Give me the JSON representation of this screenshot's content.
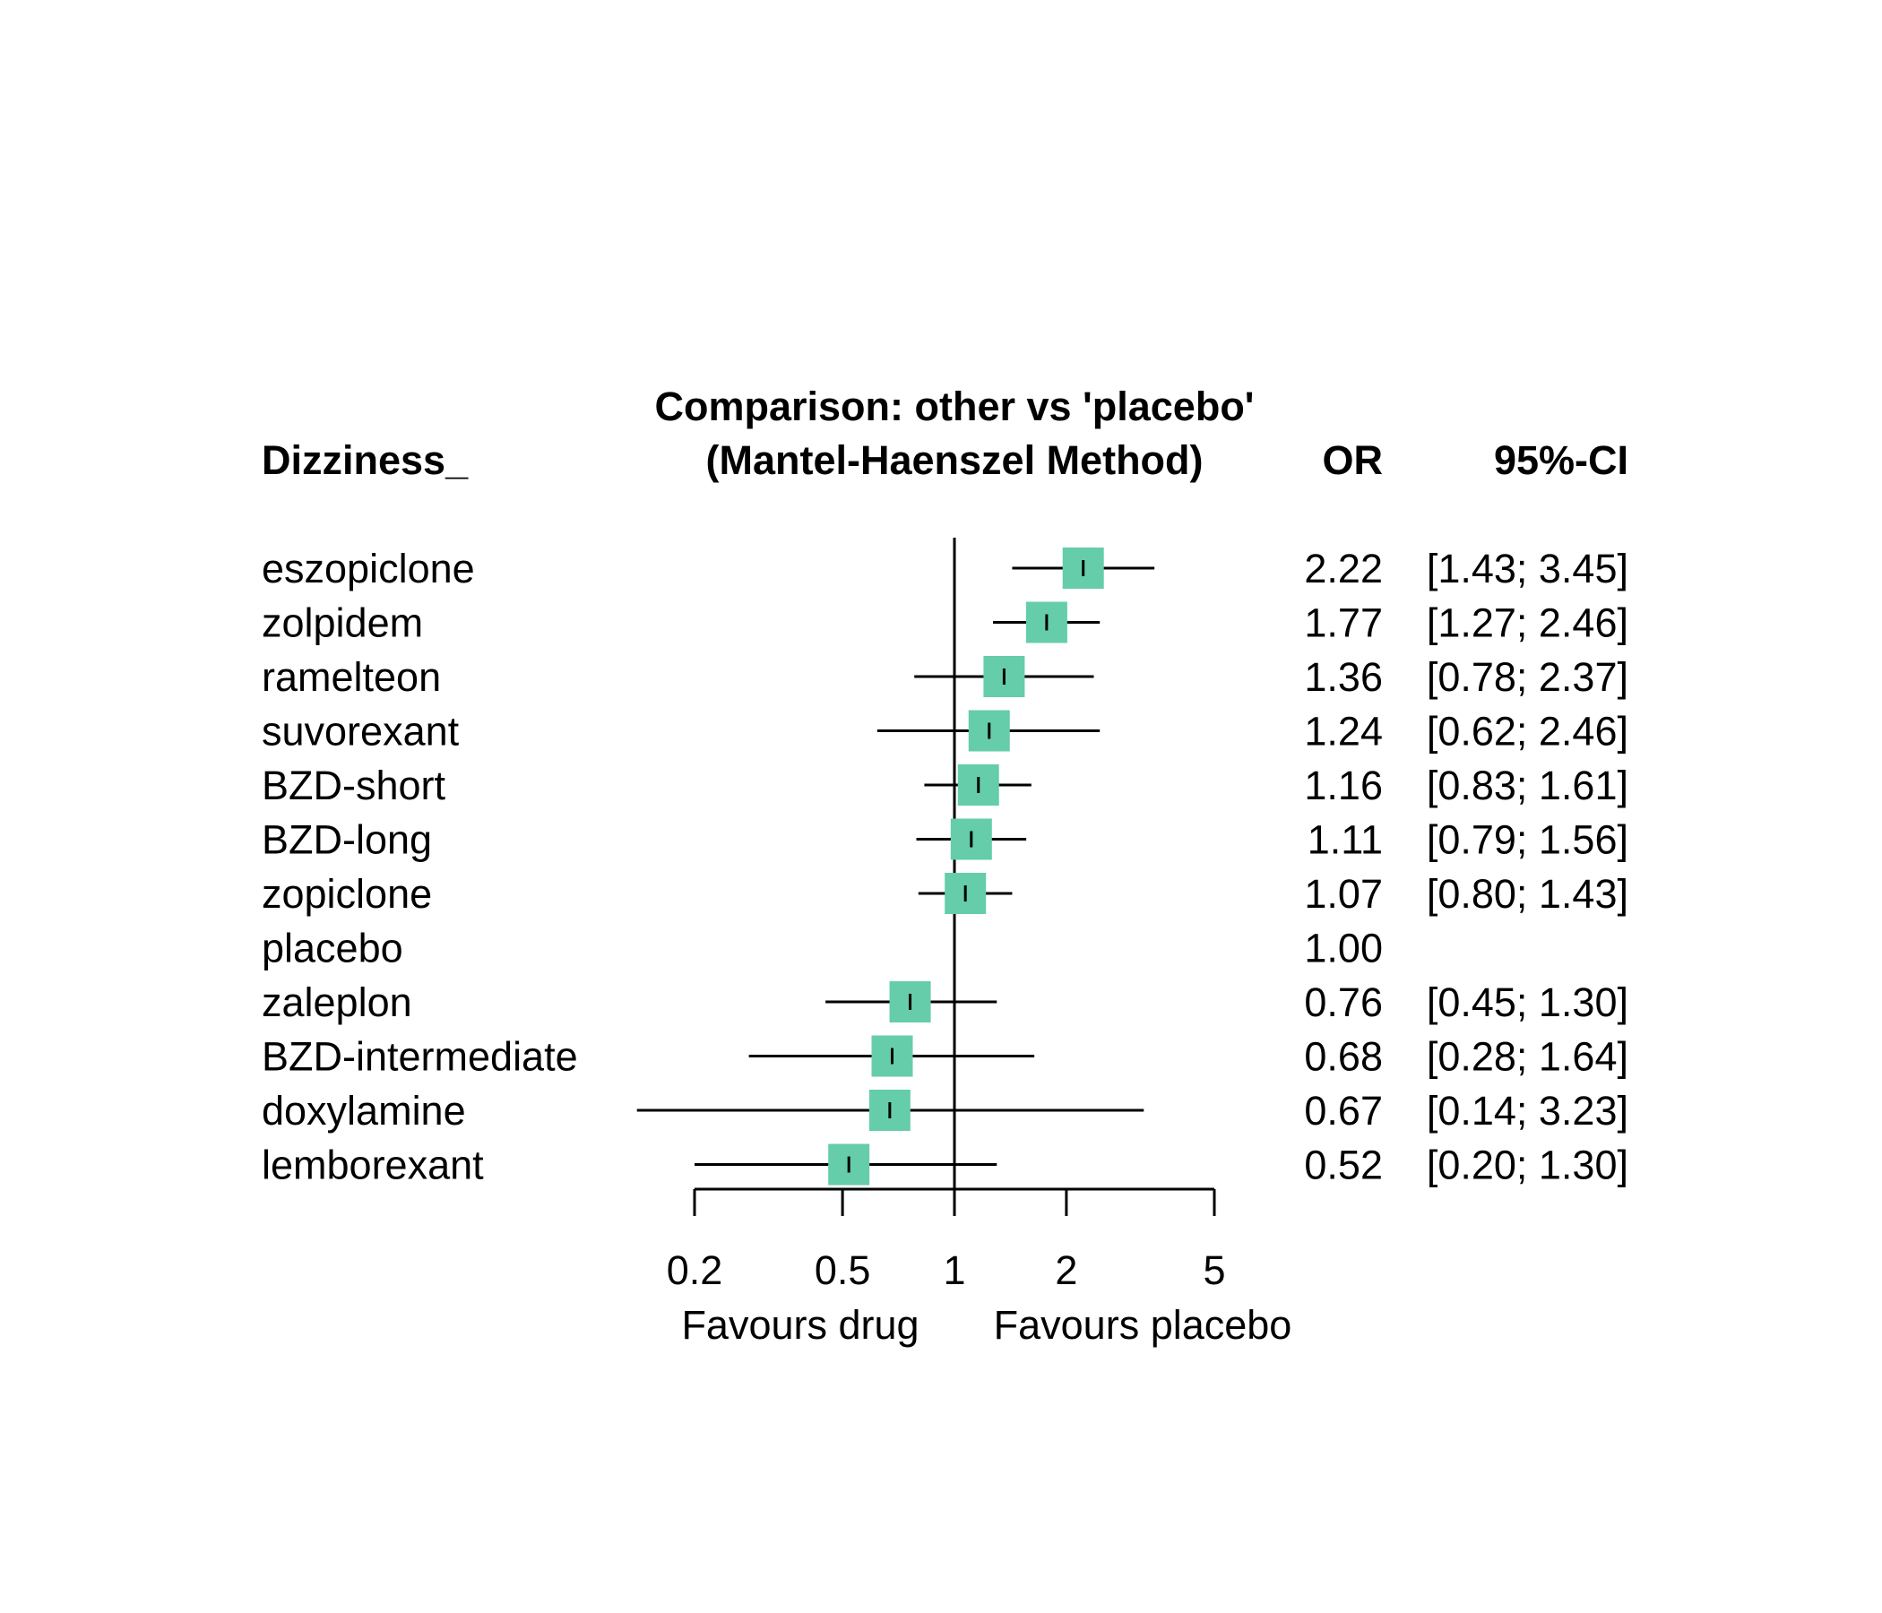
{
  "chart_data": {
    "type": "forest",
    "outcome_label": "Dizziness_",
    "title_line1": "Comparison: other vs 'placebo'",
    "title_line2": "(Mantel-Haenszel Method)",
    "col_or_label": "OR",
    "col_ci_label": "95%-CI",
    "xscale": "log",
    "xlim": [
      0.2,
      5
    ],
    "reference_value": 1,
    "ticks": [
      {
        "value": 0.2,
        "label": "0.2"
      },
      {
        "value": 0.5,
        "label": "0.5"
      },
      {
        "value": 1,
        "label": "1"
      },
      {
        "value": 2,
        "label": "2"
      },
      {
        "value": 5,
        "label": "5"
      }
    ],
    "favours_left": "Favours drug",
    "favours_right": "Favours placebo",
    "marker_color": "#66CDAA",
    "rows": [
      {
        "name": "eszopiclone",
        "or": 2.22,
        "lower": 1.43,
        "upper": 3.45,
        "or_text": "2.22",
        "ci_text": "[1.43; 3.45]"
      },
      {
        "name": "zolpidem",
        "or": 1.77,
        "lower": 1.27,
        "upper": 2.46,
        "or_text": "1.77",
        "ci_text": "[1.27; 2.46]"
      },
      {
        "name": "ramelteon",
        "or": 1.36,
        "lower": 0.78,
        "upper": 2.37,
        "or_text": "1.36",
        "ci_text": "[0.78; 2.37]"
      },
      {
        "name": "suvorexant",
        "or": 1.24,
        "lower": 0.62,
        "upper": 2.46,
        "or_text": "1.24",
        "ci_text": "[0.62; 2.46]"
      },
      {
        "name": "BZD-short",
        "or": 1.16,
        "lower": 0.83,
        "upper": 1.61,
        "or_text": "1.16",
        "ci_text": "[0.83; 1.61]"
      },
      {
        "name": "BZD-long",
        "or": 1.11,
        "lower": 0.79,
        "upper": 1.56,
        "or_text": "1.11",
        "ci_text": "[0.79; 1.56]"
      },
      {
        "name": "zopiclone",
        "or": 1.07,
        "lower": 0.8,
        "upper": 1.43,
        "or_text": "1.07",
        "ci_text": "[0.80; 1.43]"
      },
      {
        "name": "placebo",
        "or": 1.0,
        "lower": null,
        "upper": null,
        "or_text": "1.00",
        "ci_text": ""
      },
      {
        "name": "zaleplon",
        "or": 0.76,
        "lower": 0.45,
        "upper": 1.3,
        "or_text": "0.76",
        "ci_text": "[0.45; 1.30]"
      },
      {
        "name": "BZD-intermediate",
        "or": 0.68,
        "lower": 0.28,
        "upper": 1.64,
        "or_text": "0.68",
        "ci_text": "[0.28; 1.64]"
      },
      {
        "name": "doxylamine",
        "or": 0.67,
        "lower": 0.14,
        "upper": 3.23,
        "or_text": "0.67",
        "ci_text": "[0.14; 3.23]"
      },
      {
        "name": "lemborexant",
        "or": 0.52,
        "lower": 0.2,
        "upper": 1.3,
        "or_text": "0.52",
        "ci_text": "[0.20; 1.30]"
      }
    ]
  }
}
